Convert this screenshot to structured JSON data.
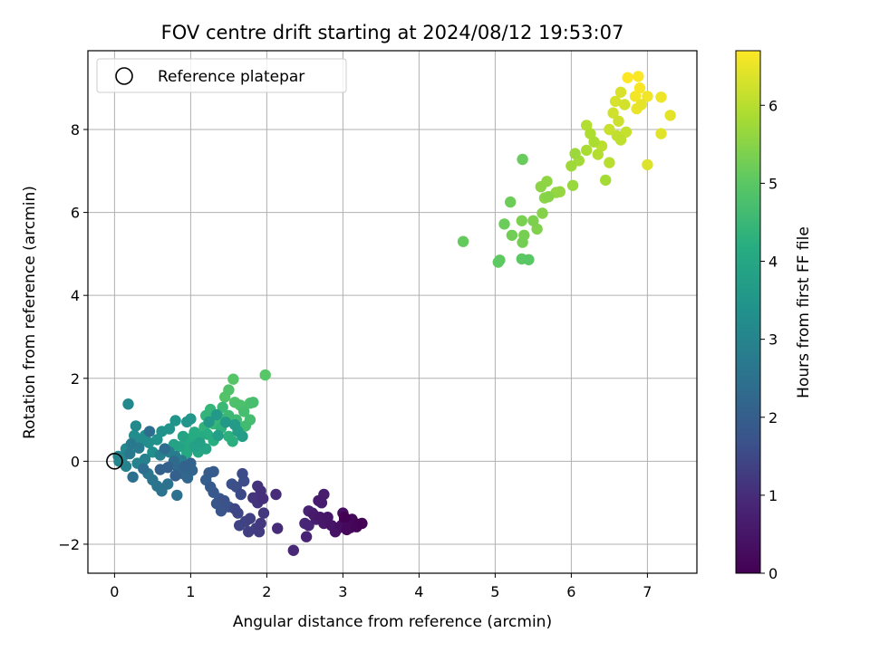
{
  "chart_data": {
    "type": "scatter",
    "title": "FOV centre drift starting at 2024/08/12 19:53:07",
    "xlabel": "Angular distance from reference (arcmin)",
    "ylabel": "Rotation from reference (arcmin)",
    "xlim": [
      -0.35,
      7.65
    ],
    "ylim": [
      -2.7,
      9.9
    ],
    "x_ticks": [
      0,
      1,
      2,
      3,
      4,
      5,
      6,
      7
    ],
    "y_ticks": [
      -2,
      0,
      2,
      4,
      6,
      8
    ],
    "grid": true,
    "legend": {
      "placement": "top-left",
      "entries": [
        "Reference platepar"
      ]
    },
    "reference_point": {
      "x": 0,
      "y": 0
    },
    "colorbar": {
      "label": "Hours from first FF file",
      "colormap": "viridis",
      "range": [
        0,
        6.7
      ],
      "ticks": [
        0,
        1,
        2,
        3,
        4,
        5,
        6
      ]
    },
    "series": [
      {
        "points": [
          [
            6.74,
            9.25
          ],
          [
            6.88,
            9.28
          ],
          [
            6.9,
            9.0
          ],
          [
            6.84,
            8.8
          ],
          [
            7.0,
            8.8
          ],
          [
            7.18,
            8.78
          ],
          [
            6.86,
            8.5
          ],
          [
            6.92,
            8.6
          ],
          [
            7.3,
            8.34
          ],
          [
            7.18,
            7.9
          ],
          [
            7.0,
            7.15
          ],
          [
            6.65,
            8.9
          ],
          [
            6.58,
            8.68
          ],
          [
            6.7,
            8.6
          ],
          [
            6.55,
            8.4
          ],
          [
            6.62,
            8.2
          ],
          [
            6.5,
            8.0
          ],
          [
            6.72,
            7.94
          ],
          [
            6.6,
            7.85
          ],
          [
            6.65,
            7.75
          ],
          [
            6.4,
            7.6
          ],
          [
            6.5,
            7.2
          ],
          [
            6.35,
            7.4
          ],
          [
            6.2,
            8.1
          ],
          [
            6.25,
            7.9
          ],
          [
            6.3,
            7.7
          ],
          [
            6.2,
            7.5
          ],
          [
            6.45,
            6.78
          ],
          [
            6.1,
            7.25
          ],
          [
            6.0,
            7.12
          ],
          [
            6.05,
            7.42
          ],
          [
            6.02,
            6.65
          ],
          [
            5.85,
            6.5
          ],
          [
            5.8,
            6.48
          ],
          [
            5.68,
            6.75
          ],
          [
            5.6,
            6.62
          ],
          [
            5.65,
            6.35
          ],
          [
            5.7,
            6.38
          ],
          [
            5.62,
            5.98
          ],
          [
            5.55,
            5.6
          ],
          [
            5.5,
            5.8
          ],
          [
            5.35,
            5.8
          ],
          [
            5.38,
            5.45
          ],
          [
            5.36,
            5.28
          ],
          [
            5.22,
            5.45
          ],
          [
            5.2,
            6.25
          ],
          [
            5.12,
            5.72
          ],
          [
            5.36,
            7.28
          ],
          [
            4.58,
            5.3
          ],
          [
            5.06,
            4.85
          ],
          [
            5.04,
            4.8
          ],
          [
            5.35,
            4.88
          ],
          [
            5.44,
            4.86
          ],
          [
            1.98,
            2.08
          ],
          [
            1.56,
            1.98
          ],
          [
            1.45,
            1.55
          ],
          [
            1.5,
            1.72
          ],
          [
            1.58,
            1.42
          ],
          [
            1.65,
            1.35
          ],
          [
            1.78,
            1.4
          ],
          [
            1.82,
            1.42
          ],
          [
            1.7,
            1.2
          ],
          [
            1.78,
            1.0
          ],
          [
            1.72,
            0.85
          ],
          [
            1.6,
            1.0
          ],
          [
            1.5,
            1.1
          ],
          [
            1.42,
            1.3
          ],
          [
            1.38,
            1.05
          ],
          [
            1.3,
            0.9
          ],
          [
            1.26,
            1.25
          ],
          [
            1.2,
            1.1
          ],
          [
            1.18,
            0.82
          ],
          [
            1.4,
            0.8
          ],
          [
            1.5,
            0.6
          ],
          [
            1.55,
            0.48
          ],
          [
            1.3,
            0.5
          ],
          [
            1.22,
            0.65
          ],
          [
            1.12,
            0.6
          ],
          [
            1.05,
            0.7
          ],
          [
            1.0,
            0.55
          ],
          [
            0.96,
            0.4
          ],
          [
            0.95,
            0.2
          ],
          [
            1.1,
            0.22
          ],
          [
            1.2,
            0.3
          ],
          [
            0.9,
            0.6
          ],
          [
            0.85,
            0.35
          ],
          [
            0.78,
            0.4
          ],
          [
            1.05,
            0.35
          ],
          [
            1.12,
            0.45
          ],
          [
            1.36,
            0.62
          ],
          [
            1.62,
            0.72
          ],
          [
            1.68,
            0.6
          ],
          [
            1.58,
            0.88
          ],
          [
            1.46,
            0.94
          ],
          [
            1.34,
            1.12
          ],
          [
            1.24,
            0.95
          ],
          [
            1.0,
            1.02
          ],
          [
            0.95,
            0.95
          ],
          [
            0.8,
            0.98
          ],
          [
            0.72,
            0.78
          ],
          [
            0.62,
            0.72
          ],
          [
            0.56,
            0.52
          ],
          [
            0.5,
            0.22
          ],
          [
            0.45,
            0.45
          ],
          [
            0.4,
            0.62
          ],
          [
            0.36,
            0.5
          ],
          [
            0.26,
            0.62
          ],
          [
            0.28,
            0.85
          ],
          [
            0.18,
            1.38
          ],
          [
            0.15,
            0.3
          ],
          [
            0.1,
            0.08
          ],
          [
            0.05,
            0.12
          ],
          [
            0.06,
            0.0
          ],
          [
            0.15,
            -0.12
          ],
          [
            0.3,
            -0.05
          ],
          [
            0.4,
            0.05
          ],
          [
            0.6,
            0.15
          ],
          [
            0.72,
            0.22
          ],
          [
            0.8,
            0.12
          ],
          [
            0.88,
            0.02
          ],
          [
            0.32,
            0.32
          ],
          [
            0.22,
            0.42
          ],
          [
            0.2,
            0.18
          ],
          [
            0.44,
            -0.3
          ],
          [
            0.5,
            -0.45
          ],
          [
            0.56,
            -0.6
          ],
          [
            0.62,
            -0.72
          ],
          [
            0.7,
            -0.55
          ],
          [
            0.82,
            -0.82
          ],
          [
            0.24,
            -0.38
          ],
          [
            0.38,
            -0.18
          ],
          [
            0.46,
            0.72
          ],
          [
            0.66,
            0.3
          ],
          [
            0.78,
            0.0
          ],
          [
            0.84,
            -0.2
          ],
          [
            0.9,
            -0.3
          ],
          [
            0.96,
            -0.4
          ],
          [
            1.02,
            -0.22
          ],
          [
            1.0,
            -0.05
          ],
          [
            0.92,
            -0.12
          ],
          [
            0.6,
            -0.2
          ],
          [
            0.7,
            -0.15
          ],
          [
            0.8,
            -0.35
          ],
          [
            1.2,
            -0.45
          ],
          [
            1.24,
            -0.28
          ],
          [
            1.3,
            -0.25
          ],
          [
            1.26,
            -0.62
          ],
          [
            1.3,
            -0.75
          ],
          [
            1.38,
            -0.9
          ],
          [
            1.34,
            -1.02
          ],
          [
            1.4,
            -1.2
          ],
          [
            1.5,
            -1.1
          ],
          [
            1.44,
            -0.95
          ],
          [
            1.54,
            -0.55
          ],
          [
            1.6,
            -0.62
          ],
          [
            1.7,
            -0.48
          ],
          [
            1.68,
            -0.3
          ],
          [
            1.66,
            -0.8
          ],
          [
            1.58,
            -1.15
          ],
          [
            1.62,
            -1.25
          ],
          [
            1.64,
            -1.55
          ],
          [
            1.72,
            -1.45
          ],
          [
            1.78,
            -1.38
          ],
          [
            1.76,
            -1.7
          ],
          [
            1.86,
            -1.62
          ],
          [
            1.9,
            -1.7
          ],
          [
            1.92,
            -1.5
          ],
          [
            1.96,
            -1.25
          ],
          [
            1.88,
            -1.0
          ],
          [
            1.82,
            -0.88
          ],
          [
            1.88,
            -0.6
          ],
          [
            1.92,
            -0.72
          ],
          [
            1.95,
            -0.9
          ],
          [
            2.12,
            -0.8
          ],
          [
            2.14,
            -1.62
          ],
          [
            2.35,
            -2.15
          ],
          [
            2.5,
            -1.5
          ],
          [
            2.55,
            -1.55
          ],
          [
            2.52,
            -1.82
          ],
          [
            2.55,
            -1.2
          ],
          [
            2.6,
            -1.25
          ],
          [
            2.65,
            -1.4
          ],
          [
            2.72,
            -1.0
          ],
          [
            2.75,
            -0.8
          ],
          [
            2.68,
            -0.95
          ],
          [
            2.62,
            -1.3
          ],
          [
            2.7,
            -1.35
          ],
          [
            2.75,
            -1.5
          ],
          [
            2.8,
            -1.35
          ],
          [
            2.85,
            -1.55
          ],
          [
            2.9,
            -1.7
          ],
          [
            2.95,
            -1.6
          ],
          [
            2.98,
            -1.55
          ],
          [
            3.0,
            -1.25
          ],
          [
            3.02,
            -1.42
          ],
          [
            3.08,
            -1.5
          ],
          [
            3.1,
            -1.6
          ],
          [
            3.12,
            -1.4
          ],
          [
            3.05,
            -1.65
          ],
          [
            3.14,
            -1.5
          ],
          [
            3.18,
            -1.58
          ],
          [
            3.2,
            -1.52
          ],
          [
            3.25,
            -1.5
          ],
          [
            3.02,
            -1.35
          ]
        ]
      }
    ]
  }
}
